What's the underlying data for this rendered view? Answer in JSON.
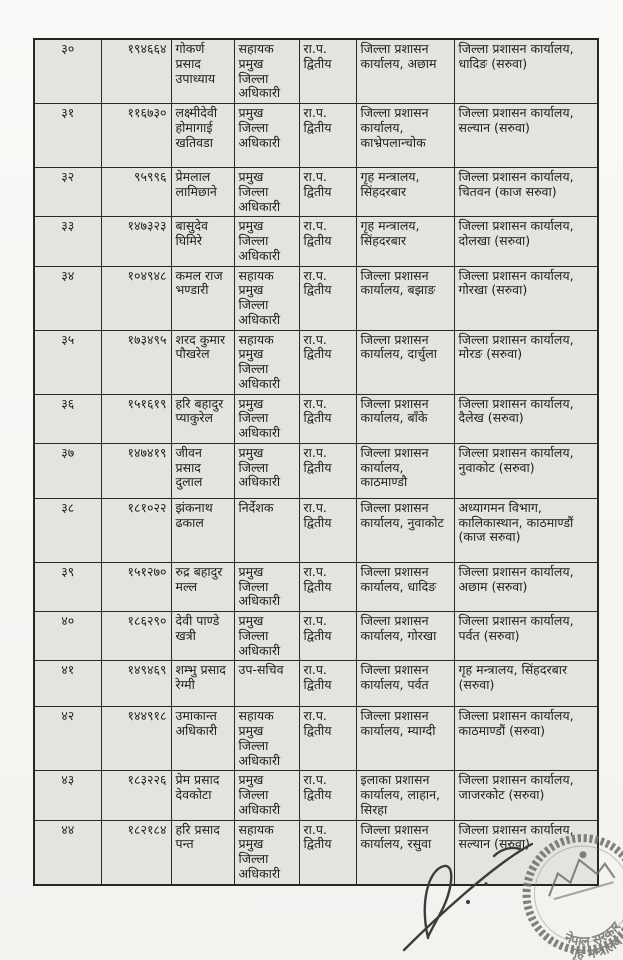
{
  "table": {
    "rows": [
      {
        "sn": "३०",
        "emp_id": "१९४६६४",
        "name": "गोकर्ण प्रसाद उपाध्याय",
        "position": "सहायक प्रमुख जिल्ला अधिकारी",
        "rank": "रा.प. द्वितीय",
        "current_office": "जिल्ला प्रशासन कार्यालय, अछाम",
        "new_office": "जिल्ला प्रशासन कार्यालय, धादिङ (सरुवा)"
      },
      {
        "sn": "३१",
        "emp_id": "११६७३०",
        "name": "लक्ष्मीदेवी होमागाई खतिवडा",
        "position": "प्रमुख जिल्ला अधिकारी",
        "rank": "रा.प. द्वितीय",
        "current_office": "जिल्ला प्रशासन कार्यालय, काभ्रेपलान्चोक",
        "new_office": "जिल्ला प्रशासन कार्यालय, सल्यान (सरुवा)"
      },
      {
        "sn": "३२",
        "emp_id": "९५९९६",
        "name": "प्रेमलाल लामिछाने",
        "position": "प्रमुख जिल्ला अधिकारी",
        "rank": "रा.प. द्वितीय",
        "current_office": "गृह मन्त्रालय, सिंहदरबार",
        "new_office": "जिल्ला प्रशासन कार्यालय, चितवन (काज सरुवा)"
      },
      {
        "sn": "३३",
        "emp_id": "१४७३२३",
        "name": "बासुदेव घिमिरे",
        "position": "प्रमुख जिल्ला अधिकारी",
        "rank": "रा.प. द्वितीय",
        "current_office": "गृह मन्त्रालय, सिंहदरबार",
        "new_office": "जिल्ला प्रशासन कार्यालय, दोलखा (सरुवा)"
      },
      {
        "sn": "३४",
        "emp_id": "१०४९४८",
        "name": "कमल राज भण्डारी",
        "position": "सहायक प्रमुख जिल्ला अधिकारी",
        "rank": "रा.प. द्वितीय",
        "current_office": "जिल्ला प्रशासन कार्यालय, बझाङ",
        "new_office": "जिल्ला प्रशासन कार्यालय, गोरखा (सरुवा)"
      },
      {
        "sn": "३५",
        "emp_id": "१७३४९५",
        "name": "शरद कुमार पौखरेल",
        "position": "सहायक प्रमुख जिल्ला अधिकारी",
        "rank": "रा.प. द्वितीय",
        "current_office": "जिल्ला प्रशासन कार्यालय, दार्चुला",
        "new_office": "जिल्ला प्रशासन कार्यालय, मोरङ (सरुवा)"
      },
      {
        "sn": "३६",
        "emp_id": "१५१६१९",
        "name": "हरि बहादुर प्याकुरेल",
        "position": "प्रमुख जिल्ला अधिकारी",
        "rank": "रा.प. द्वितीय",
        "current_office": "जिल्ला प्रशासन कार्यालय, बाँके",
        "new_office": "जिल्ला प्रशासन कार्यालय, दैलेख (सरुवा)"
      },
      {
        "sn": "३७",
        "emp_id": "१४७४१९",
        "name": "जीवन प्रसाद दुलाल",
        "position": "प्रमुख जिल्ला अधिकारी",
        "rank": "रा.प. द्वितीय",
        "current_office": "जिल्ला प्रशासन कार्यालय, काठमाण्डौ",
        "new_office": "जिल्ला प्रशासन कार्यालय, नुवाकोट (सरुवा)"
      },
      {
        "sn": "३८",
        "emp_id": "१८१०२२",
        "name": "झंकनाथ ढकाल",
        "position": "निर्देशक",
        "rank": "रा.प. द्वितीय",
        "current_office": "जिल्ला प्रशासन कार्यालय, नुवाकोट",
        "new_office": "अध्यागमन विभाग, कालिकास्थान, काठमाण्डौं (काज सरुवा)"
      },
      {
        "sn": "३९",
        "emp_id": "१५१२७०",
        "name": "रुद्र बहादुर मल्ल",
        "position": "प्रमुख जिल्ला अधिकारी",
        "rank": "रा.प. द्वितीय",
        "current_office": "जिल्ला प्रशासन कार्यालय, धादिङ",
        "new_office": "जिल्ला प्रशासन कार्यालय, अछाम (सरुवा)"
      },
      {
        "sn": "४०",
        "emp_id": "१८६२९०",
        "name": "देवी पाण्डे खत्री",
        "position": "प्रमुख जिल्ला अधिकारी",
        "rank": "रा.प. द्वितीय",
        "current_office": "जिल्ला प्रशासन कार्यालय, गोरखा",
        "new_office": "जिल्ला प्रशासन कार्यालय, पर्वत (सरुवा)"
      },
      {
        "sn": "४१",
        "emp_id": "१४९४६९",
        "name": "शम्भु प्रसाद रेग्मी",
        "position": "उप-सचिव",
        "rank": "रा.प. द्वितीय",
        "current_office": "जिल्ला प्रशासन कार्यालय, पर्वत",
        "new_office": "गृह मन्त्रालय, सिंहदरबार (सरुवा)"
      },
      {
        "sn": "४२",
        "emp_id": "१४४९१८",
        "name": "उमाकान्त अधिकारी",
        "position": "सहायक प्रमुख जिल्ला अधिकारी",
        "rank": "रा.प. द्वितीय",
        "current_office": "जिल्ला प्रशासन कार्यालय, म्याग्दी",
        "new_office": "जिल्ला प्रशासन कार्यालय, काठमाण्डौं (सरुवा)"
      },
      {
        "sn": "४३",
        "emp_id": "१८३२२६",
        "name": "प्रेम प्रसाद देवकोटा",
        "position": "प्रमुख जिल्ला अधिकारी",
        "rank": "रा.प. द्वितीय",
        "current_office": "इलाका प्रशासन कार्यालय, लाहान, सिरहा",
        "new_office": "जिल्ला प्रशासन कार्यालय, जाजरकोट (सरुवा)"
      },
      {
        "sn": "४४",
        "emp_id": "१८२१८४",
        "name": "हरि प्रसाद पन्त",
        "position": "सहायक प्रमुख जिल्ला अधिकारी",
        "rank": "रा.प. द्वितीय",
        "current_office": "जिल्ला प्रशासन कार्यालय, रसुवा",
        "new_office": "जिल्ला प्रशासन कार्यालय, सल्यान (सरुवा)"
      }
    ]
  },
  "stamp": {
    "org": "नेपाल सरकार",
    "ministry": "गृह मन्त्रालय"
  },
  "colors": {
    "paper": "#f8f7f5",
    "cell": "#e4e3e0",
    "border": "#262523",
    "ink": "#1f1e1c",
    "stamp_ink": "#6e6e6b",
    "signature_ink": "#3d3c3a"
  }
}
